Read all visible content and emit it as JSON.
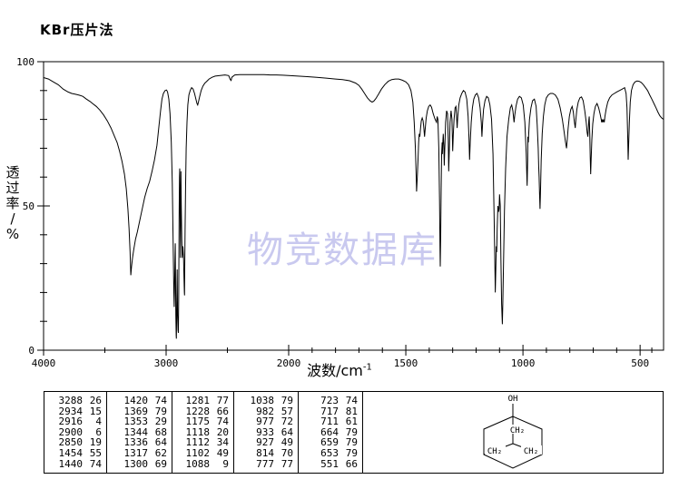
{
  "page_title": "KBr压片法",
  "watermark": "物竞数据库",
  "colors": {
    "line": "#000000",
    "watermark": "#c9c9ef",
    "background": "#ffffff"
  },
  "axes": {
    "x_label": "波数/cm",
    "x_label_sup": "-1",
    "y_label_chars": [
      "透",
      "过",
      "率",
      "/",
      "%"
    ]
  },
  "structure": {
    "oh": "OH",
    "ch2": "CH₂"
  },
  "chart_data": {
    "type": "line",
    "title": "KBr压片法",
    "xlabel": "波数/cm⁻¹",
    "ylabel": "透过率/%",
    "xlim": [
      4000,
      400
    ],
    "ylim": [
      0,
      100
    ],
    "x_scale_note": "wavenumber axis compressed 2x above 2000 cm-1, axis reversed",
    "grid": false,
    "legend": false,
    "x_major_ticks": [
      4000,
      3000,
      2000,
      1500,
      1000,
      500
    ],
    "x_minor_ticks": [
      3500,
      2500,
      1900,
      1800,
      1700,
      1600,
      1400,
      1300,
      1200,
      1100,
      900,
      800,
      700,
      600,
      450
    ],
    "y_major_ticks": [
      100,
      50,
      0
    ],
    "y_minor_ticks": [
      10,
      20,
      30,
      40,
      60,
      70,
      80,
      90
    ],
    "peak_columns": [
      [
        [
          3288,
          26
        ],
        [
          2934,
          15
        ],
        [
          2916,
          4
        ],
        [
          2900,
          6
        ],
        [
          2850,
          19
        ],
        [
          1454,
          55
        ],
        [
          1440,
          74
        ]
      ],
      [
        [
          1420,
          74
        ],
        [
          1369,
          79
        ],
        [
          1353,
          29
        ],
        [
          1344,
          68
        ],
        [
          1336,
          64
        ],
        [
          1317,
          62
        ],
        [
          1300,
          69
        ]
      ],
      [
        [
          1281,
          77
        ],
        [
          1228,
          66
        ],
        [
          1175,
          74
        ],
        [
          1118,
          20
        ],
        [
          1112,
          34
        ],
        [
          1102,
          49
        ],
        [
          1088,
          9
        ]
      ],
      [
        [
          1038,
          79
        ],
        [
          982,
          57
        ],
        [
          977,
          72
        ],
        [
          933,
          64
        ],
        [
          927,
          49
        ],
        [
          814,
          70
        ],
        [
          777,
          77
        ]
      ],
      [
        [
          723,
          74
        ],
        [
          717,
          81
        ],
        [
          711,
          61
        ],
        [
          664,
          79
        ],
        [
          659,
          79
        ],
        [
          653,
          79
        ],
        [
          551,
          66
        ]
      ]
    ],
    "trace": [
      [
        4000,
        94.5
      ],
      [
        3960,
        94
      ],
      [
        3920,
        93
      ],
      [
        3880,
        92
      ],
      [
        3840,
        90.5
      ],
      [
        3800,
        89.5
      ],
      [
        3770,
        89
      ],
      [
        3740,
        88.7
      ],
      [
        3710,
        88.4
      ],
      [
        3680,
        88
      ],
      [
        3650,
        87
      ],
      [
        3620,
        86.2
      ],
      [
        3600,
        85.5
      ],
      [
        3570,
        84.5
      ],
      [
        3540,
        83.2
      ],
      [
        3510,
        81.5
      ],
      [
        3480,
        79.5
      ],
      [
        3450,
        77
      ],
      [
        3420,
        74
      ],
      [
        3400,
        72
      ],
      [
        3380,
        69
      ],
      [
        3360,
        65.5
      ],
      [
        3340,
        61
      ],
      [
        3325,
        56
      ],
      [
        3312,
        49
      ],
      [
        3302,
        42
      ],
      [
        3294,
        34
      ],
      [
        3288,
        26
      ],
      [
        3282,
        29
      ],
      [
        3274,
        32
      ],
      [
        3264,
        35
      ],
      [
        3250,
        38.5
      ],
      [
        3235,
        41
      ],
      [
        3215,
        45
      ],
      [
        3195,
        49
      ],
      [
        3175,
        53
      ],
      [
        3155,
        56
      ],
      [
        3135,
        58.5
      ],
      [
        3115,
        62
      ],
      [
        3095,
        66
      ],
      [
        3075,
        71
      ],
      [
        3058,
        78
      ],
      [
        3045,
        83
      ],
      [
        3034,
        87
      ],
      [
        3022,
        89
      ],
      [
        3008,
        90
      ],
      [
        2996,
        90.2
      ],
      [
        2988,
        89.5
      ],
      [
        2978,
        87
      ],
      [
        2968,
        82
      ],
      [
        2958,
        72
      ],
      [
        2950,
        58
      ],
      [
        2943,
        38
      ],
      [
        2937,
        20
      ],
      [
        2934,
        15
      ],
      [
        2931,
        22
      ],
      [
        2928,
        30
      ],
      [
        2925,
        37
      ],
      [
        2921,
        12
      ],
      [
        2918,
        5
      ],
      [
        2916,
        4
      ],
      [
        2913,
        15
      ],
      [
        2910,
        28
      ],
      [
        2907,
        12
      ],
      [
        2903,
        7
      ],
      [
        2900,
        6
      ],
      [
        2897,
        20
      ],
      [
        2894,
        45
      ],
      [
        2891,
        60
      ],
      [
        2889,
        63
      ],
      [
        2886,
        48
      ],
      [
        2883,
        32
      ],
      [
        2881,
        50
      ],
      [
        2879,
        62
      ],
      [
        2876,
        50
      ],
      [
        2872,
        38
      ],
      [
        2868,
        32
      ],
      [
        2863,
        36
      ],
      [
        2858,
        32
      ],
      [
        2854,
        25
      ],
      [
        2851,
        20
      ],
      [
        2850,
        19
      ],
      [
        2848,
        28
      ],
      [
        2845,
        42
      ],
      [
        2841,
        58
      ],
      [
        2836,
        70
      ],
      [
        2830,
        79
      ],
      [
        2823,
        85
      ],
      [
        2814,
        88.5
      ],
      [
        2804,
        90
      ],
      [
        2792,
        91
      ],
      [
        2780,
        90.5
      ],
      [
        2768,
        89
      ],
      [
        2757,
        87
      ],
      [
        2748,
        85.5
      ],
      [
        2742,
        85
      ],
      [
        2736,
        86
      ],
      [
        2726,
        88
      ],
      [
        2714,
        90
      ],
      [
        2700,
        91.5
      ],
      [
        2685,
        92.5
      ],
      [
        2668,
        93.2
      ],
      [
        2650,
        94
      ],
      [
        2625,
        94.6
      ],
      [
        2600,
        95
      ],
      [
        2560,
        95.2
      ],
      [
        2520,
        95.4
      ],
      [
        2490,
        95.2
      ],
      [
        2476,
        93.8
      ],
      [
        2470,
        93.5
      ],
      [
        2464,
        94.6
      ],
      [
        2440,
        95.4
      ],
      [
        2400,
        95.5
      ],
      [
        2350,
        95.5
      ],
      [
        2300,
        95.5
      ],
      [
        2250,
        95.5
      ],
      [
        2200,
        95.5
      ],
      [
        2150,
        95.4
      ],
      [
        2100,
        95.4
      ],
      [
        2050,
        95.3
      ],
      [
        2000,
        95.2
      ],
      [
        1960,
        95
      ],
      [
        1920,
        94.8
      ],
      [
        1880,
        94.6
      ],
      [
        1840,
        94.3
      ],
      [
        1800,
        94
      ],
      [
        1770,
        93.8
      ],
      [
        1740,
        93.4
      ],
      [
        1715,
        92.6
      ],
      [
        1700,
        91.8
      ],
      [
        1688,
        90.5
      ],
      [
        1676,
        89
      ],
      [
        1664,
        87.5
      ],
      [
        1652,
        86.4
      ],
      [
        1644,
        86
      ],
      [
        1637,
        86.3
      ],
      [
        1628,
        87.2
      ],
      [
        1616,
        88.8
      ],
      [
        1604,
        90.5
      ],
      [
        1590,
        92
      ],
      [
        1575,
        93.2
      ],
      [
        1560,
        93.8
      ],
      [
        1545,
        94
      ],
      [
        1530,
        94
      ],
      [
        1515,
        93.6
      ],
      [
        1500,
        93
      ],
      [
        1488,
        92
      ],
      [
        1478,
        90
      ],
      [
        1470,
        86
      ],
      [
        1464,
        79
      ],
      [
        1459,
        70
      ],
      [
        1455,
        58
      ],
      [
        1454,
        55
      ],
      [
        1451,
        60
      ],
      [
        1448,
        66
      ],
      [
        1445,
        72
      ],
      [
        1443,
        75
      ],
      [
        1440,
        74
      ],
      [
        1437,
        77
      ],
      [
        1434,
        79.5
      ],
      [
        1430,
        80.5
      ],
      [
        1426,
        79.5
      ],
      [
        1423,
        77
      ],
      [
        1420,
        74
      ],
      [
        1417,
        77
      ],
      [
        1413,
        80.5
      ],
      [
        1408,
        83
      ],
      [
        1402,
        84.5
      ],
      [
        1396,
        85
      ],
      [
        1390,
        84.2
      ],
      [
        1383,
        82
      ],
      [
        1376,
        80.2
      ],
      [
        1369,
        79
      ],
      [
        1366,
        81
      ],
      [
        1363,
        80
      ],
      [
        1359,
        70
      ],
      [
        1356,
        52
      ],
      [
        1354,
        36
      ],
      [
        1353,
        29
      ],
      [
        1351,
        40
      ],
      [
        1349,
        56
      ],
      [
        1347,
        68
      ],
      [
        1345,
        72
      ],
      [
        1344,
        68
      ],
      [
        1342,
        72
      ],
      [
        1340,
        75
      ],
      [
        1338,
        71
      ],
      [
        1336,
        64
      ],
      [
        1333,
        72
      ],
      [
        1330,
        79
      ],
      [
        1326,
        83
      ],
      [
        1322,
        82
      ],
      [
        1319,
        73
      ],
      [
        1317,
        62
      ],
      [
        1314,
        71
      ],
      [
        1311,
        79
      ],
      [
        1307,
        83
      ],
      [
        1303,
        80
      ],
      [
        1301,
        73
      ],
      [
        1300,
        69
      ],
      [
        1297,
        75
      ],
      [
        1294,
        80
      ],
      [
        1290,
        84
      ],
      [
        1286,
        84.5
      ],
      [
        1283,
        80
      ],
      [
        1281,
        77
      ],
      [
        1278,
        81
      ],
      [
        1274,
        85
      ],
      [
        1268,
        87.5
      ],
      [
        1261,
        89
      ],
      [
        1254,
        90
      ],
      [
        1247,
        89.5
      ],
      [
        1240,
        87
      ],
      [
        1234,
        81
      ],
      [
        1230,
        73
      ],
      [
        1228,
        66
      ],
      [
        1225,
        72
      ],
      [
        1221,
        79
      ],
      [
        1216,
        84
      ],
      [
        1210,
        87
      ],
      [
        1203,
        88.5
      ],
      [
        1196,
        89
      ],
      [
        1189,
        87.5
      ],
      [
        1183,
        84
      ],
      [
        1178,
        79
      ],
      [
        1175,
        74
      ],
      [
        1172,
        79
      ],
      [
        1168,
        83.5
      ],
      [
        1162,
        86.5
      ],
      [
        1155,
        88
      ],
      [
        1148,
        87.5
      ],
      [
        1141,
        85
      ],
      [
        1134,
        80
      ],
      [
        1128,
        68
      ],
      [
        1123,
        45
      ],
      [
        1119,
        25
      ],
      [
        1118,
        20
      ],
      [
        1116,
        28
      ],
      [
        1114,
        36
      ],
      [
        1112,
        34
      ],
      [
        1110,
        42
      ],
      [
        1107,
        50
      ],
      [
        1104,
        48
      ],
      [
        1102,
        49
      ],
      [
        1100,
        54
      ],
      [
        1097,
        50
      ],
      [
        1094,
        32
      ],
      [
        1091,
        16
      ],
      [
        1088,
        9
      ],
      [
        1086,
        16
      ],
      [
        1083,
        30
      ],
      [
        1079,
        48
      ],
      [
        1074,
        63
      ],
      [
        1068,
        74
      ],
      [
        1061,
        80
      ],
      [
        1054,
        84
      ],
      [
        1048,
        85
      ],
      [
        1043,
        83
      ],
      [
        1038,
        79
      ],
      [
        1035,
        81.5
      ],
      [
        1030,
        84.5
      ],
      [
        1023,
        87
      ],
      [
        1015,
        88
      ],
      [
        1007,
        87.5
      ],
      [
        999,
        85
      ],
      [
        992,
        79
      ],
      [
        986,
        68
      ],
      [
        983,
        59
      ],
      [
        982,
        57
      ],
      [
        980,
        66
      ],
      [
        979,
        74
      ],
      [
        977,
        72
      ],
      [
        975,
        76
      ],
      [
        972,
        80
      ],
      [
        966,
        84
      ],
      [
        959,
        86.5
      ],
      [
        951,
        87
      ],
      [
        944,
        84.5
      ],
      [
        939,
        78
      ],
      [
        935,
        70
      ],
      [
        933,
        64
      ],
      [
        931,
        60
      ],
      [
        929,
        54
      ],
      [
        927,
        49
      ],
      [
        925,
        56
      ],
      [
        922,
        66
      ],
      [
        918,
        75
      ],
      [
        913,
        81
      ],
      [
        907,
        85
      ],
      [
        900,
        87.5
      ],
      [
        892,
        88.5
      ],
      [
        883,
        89
      ],
      [
        873,
        89
      ],
      [
        862,
        88.5
      ],
      [
        851,
        87
      ],
      [
        841,
        84
      ],
      [
        832,
        80
      ],
      [
        825,
        76
      ],
      [
        819,
        72.5
      ],
      [
        814,
        70
      ],
      [
        811,
        73
      ],
      [
        807,
        77
      ],
      [
        802,
        81
      ],
      [
        796,
        83.5
      ],
      [
        790,
        84.5
      ],
      [
        785,
        82.5
      ],
      [
        781,
        79.5
      ],
      [
        777,
        77
      ],
      [
        774,
        80
      ],
      [
        770,
        83.5
      ],
      [
        764,
        86
      ],
      [
        757,
        87.5
      ],
      [
        750,
        87.8
      ],
      [
        743,
        86.5
      ],
      [
        736,
        83
      ],
      [
        730,
        79
      ],
      [
        726,
        75.5
      ],
      [
        723,
        74
      ],
      [
        721,
        76.5
      ],
      [
        719,
        79.5
      ],
      [
        717,
        81
      ],
      [
        715,
        75
      ],
      [
        713,
        67
      ],
      [
        711,
        61
      ],
      [
        709,
        66
      ],
      [
        706,
        73
      ],
      [
        702,
        78.5
      ],
      [
        697,
        82
      ],
      [
        691,
        84.5
      ],
      [
        684,
        85.5
      ],
      [
        677,
        84
      ],
      [
        671,
        82
      ],
      [
        666,
        80
      ],
      [
        664,
        79
      ],
      [
        662,
        80
      ],
      [
        659,
        79
      ],
      [
        656,
        80
      ],
      [
        653,
        79
      ],
      [
        650,
        81
      ],
      [
        645,
        83.5
      ],
      [
        638,
        86
      ],
      [
        630,
        87.5
      ],
      [
        620,
        88.5
      ],
      [
        610,
        89
      ],
      [
        600,
        89.5
      ],
      [
        588,
        90
      ],
      [
        576,
        90.5
      ],
      [
        566,
        91
      ],
      [
        560,
        89
      ],
      [
        556,
        84
      ],
      [
        553,
        74
      ],
      [
        551,
        66
      ],
      [
        549,
        71
      ],
      [
        546,
        79
      ],
      [
        542,
        86
      ],
      [
        537,
        90
      ],
      [
        530,
        92
      ],
      [
        522,
        93
      ],
      [
        513,
        93.3
      ],
      [
        504,
        93.2
      ],
      [
        495,
        92.8
      ],
      [
        486,
        92
      ],
      [
        477,
        91
      ],
      [
        468,
        90
      ],
      [
        459,
        88.5
      ],
      [
        450,
        87
      ],
      [
        441,
        85.5
      ],
      [
        432,
        84
      ],
      [
        424,
        82.5
      ],
      [
        416,
        81.3
      ],
      [
        408,
        80.5
      ],
      [
        400,
        80
      ]
    ]
  }
}
